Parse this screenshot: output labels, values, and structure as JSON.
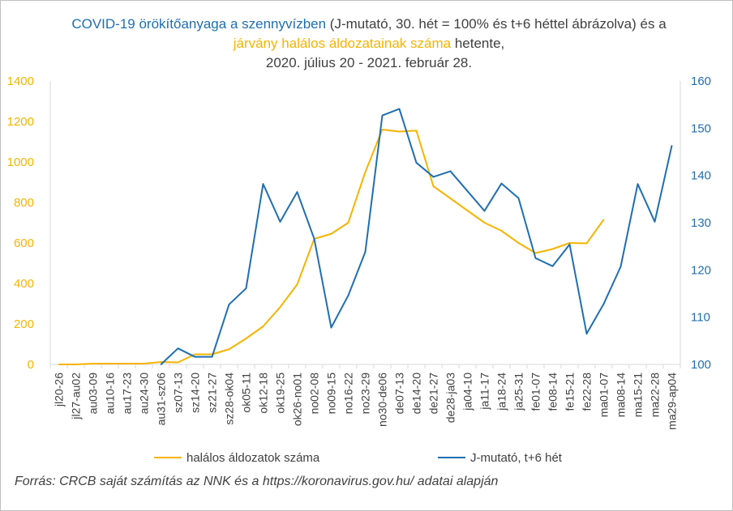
{
  "title": {
    "part1": "COVID-19 örökítőanyaga a szennyvízben",
    "part2": " (J-mutató, 30. hét = 100% és t+6 héttel ábrázolva) és a ",
    "part3": "járvány halálos áldozatainak száma",
    "part4": " hetente,",
    "line3": "2020. július 20 - 2021. február 28."
  },
  "source": "Forrás: CRCB saját számítás az NNK és a https://koronavirus.gov.hu/ adatai alapján",
  "colors": {
    "deaths": "#f5b400",
    "jindex": "#1f6fb0",
    "axis": "#d9d9d9",
    "text": "#404040"
  },
  "chart_data": {
    "type": "line",
    "categories": [
      "jl20-26",
      "jl27-au02",
      "au03-09",
      "au10-16",
      "au17-23",
      "au24-30",
      "au31-sz06",
      "sz07-13",
      "sz14-20",
      "sz21-27",
      "sz28-ok04",
      "ok05-11",
      "ok12-18",
      "ok19-25",
      "ok26-no01",
      "no02-08",
      "no09-15",
      "no16-22",
      "no23-29",
      "no30-de06",
      "de07-13",
      "de14-20",
      "de21-27",
      "de28-ja03",
      "ja04-10",
      "ja11-17",
      "ja18-24",
      "ja25-31",
      "fe01-07",
      "fe08-14",
      "fe15-21",
      "fe22-28",
      "ma01-07",
      "ma08-14",
      "ma15-21",
      "ma22-28",
      "ma29-ap04"
    ],
    "y_left": {
      "min": 0,
      "max": 1400,
      "step": 200,
      "ticks": [
        "0",
        "200",
        "400",
        "600",
        "800",
        "1000",
        "1200",
        "1400"
      ]
    },
    "y_right": {
      "min": 100,
      "max": 160,
      "step": 10,
      "ticks": [
        "100",
        "110",
        "120",
        "130",
        "140",
        "150",
        "160"
      ]
    },
    "series": [
      {
        "name": "halálos áldozatok száma",
        "axis": "left",
        "values": [
          0,
          0,
          4,
          4,
          4,
          4,
          12,
          10,
          50,
          50,
          75,
          128,
          188,
          283,
          395,
          620,
          645,
          700,
          950,
          1160,
          1150,
          1155,
          880,
          820,
          760,
          700,
          660,
          600,
          550,
          570,
          600,
          598,
          715,
          null,
          null,
          null,
          null
        ]
      },
      {
        "name": "J-mutató, t+6 hét",
        "axis": "right",
        "values": [
          null,
          null,
          null,
          null,
          null,
          null,
          100,
          103.4,
          101.6,
          101.6,
          112.7,
          116.1,
          138.2,
          130.2,
          136.5,
          126.6,
          107.8,
          114.6,
          123.8,
          152.7,
          154.1,
          142.7,
          139.7,
          140.9,
          136.7,
          132.5,
          138.3,
          135.2,
          122.5,
          120.8,
          125.4,
          106.5,
          112.8,
          120.7,
          138.2,
          130.2,
          146.3
        ]
      }
    ],
    "grid": false,
    "legend": "bottom"
  }
}
